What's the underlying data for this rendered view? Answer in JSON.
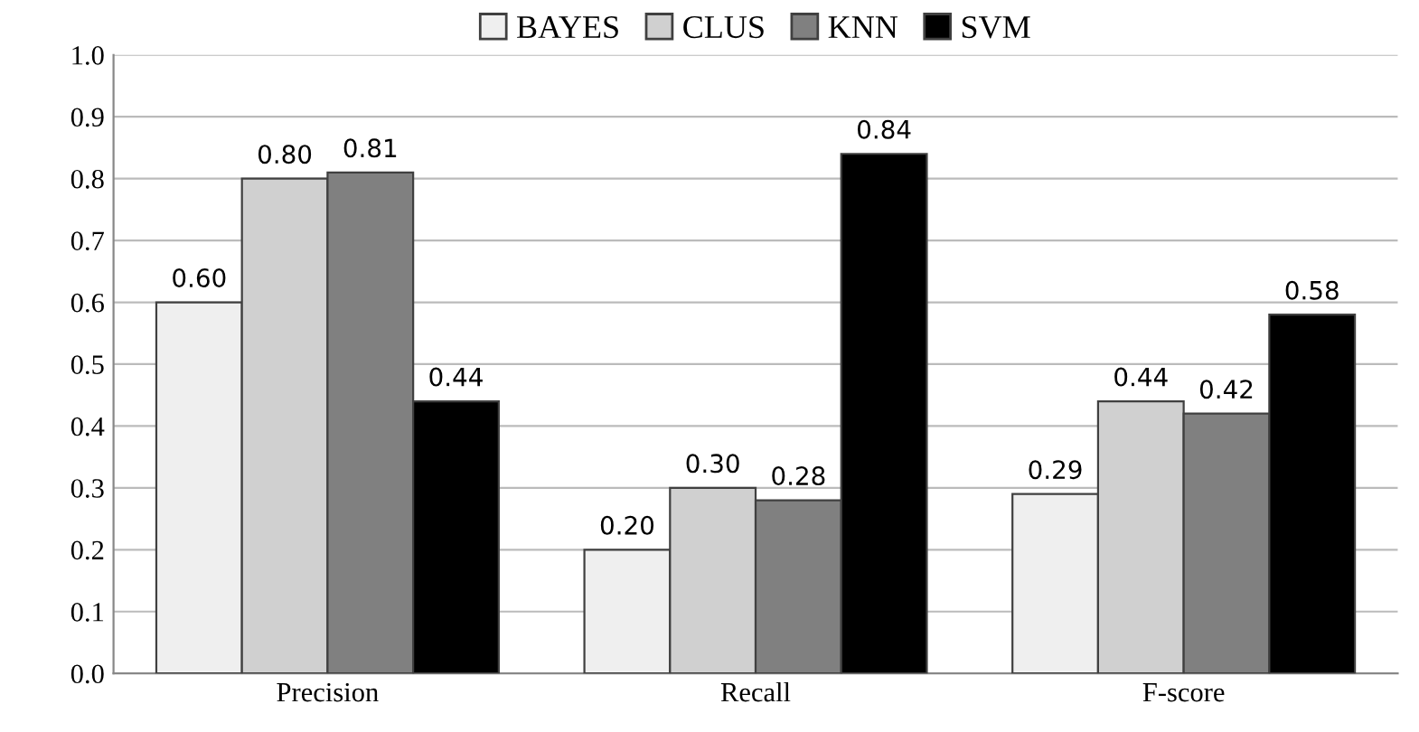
{
  "chart_data": {
    "type": "bar",
    "categories": [
      "Precision",
      "Recall",
      "F-score"
    ],
    "series": [
      {
        "name": "BAYES",
        "color": "#efefef",
        "values": [
          0.6,
          0.2,
          0.29
        ],
        "value_labels": [
          "0.60",
          "0.20",
          "0.29"
        ]
      },
      {
        "name": "CLUS",
        "color": "#d0d0d0",
        "values": [
          0.8,
          0.3,
          0.44
        ],
        "value_labels": [
          "0.80",
          "0.30",
          "0.44"
        ]
      },
      {
        "name": "KNN",
        "color": "#808080",
        "values": [
          0.81,
          0.28,
          0.42
        ],
        "value_labels": [
          "0.81",
          "0.28",
          "0.42"
        ]
      },
      {
        "name": "SVM",
        "color": "#000000",
        "values": [
          0.44,
          0.84,
          0.58
        ],
        "value_labels": [
          "0.44",
          "0.84",
          "0.58"
        ]
      }
    ],
    "ylim": [
      0,
      1.0
    ],
    "yticks": [
      {
        "value": 0,
        "label": "0.0"
      },
      0.1,
      0.2,
      0.3,
      0.4,
      0.5,
      0.6,
      0.7,
      0.8,
      0.9,
      {
        "value": 1.0,
        "label": "1.0"
      }
    ],
    "grid": "y",
    "legend": "top"
  }
}
